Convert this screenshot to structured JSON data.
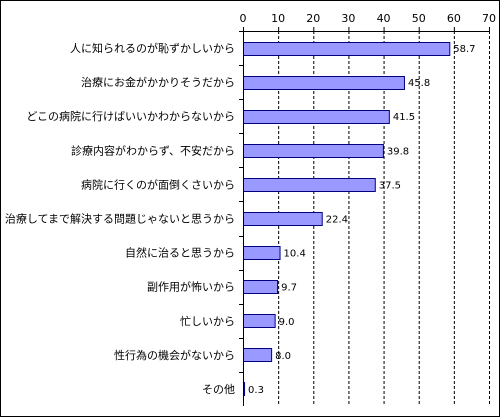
{
  "chart_data": {
    "type": "bar",
    "orientation": "horizontal",
    "categories": [
      "人に知られるのが恥ずかしいから",
      "治療にお金がかかりそうだから",
      "どこの病院に行けばいいかわからないから",
      "診療内容がわからず、不安だから",
      "病院に行くのが面倒くさいから",
      "治療してまで解決する問題じゃないと思うから",
      "自然に治ると思うから",
      "副作用が怖いから",
      "忙しいから",
      "性行為の機会がないから",
      "その他"
    ],
    "values": [
      58.7,
      45.8,
      41.5,
      39.8,
      37.5,
      22.4,
      10.4,
      9.7,
      9.0,
      8.0,
      0.3
    ],
    "value_labels": [
      "58.7",
      "45.8",
      "41.5",
      "39.8",
      "37.5",
      "22.4",
      "10.4",
      "9.7",
      "9.0",
      "8.0",
      "0.3"
    ],
    "x_ticks": [
      "0",
      "10",
      "20",
      "30",
      "40",
      "50",
      "60",
      "70"
    ],
    "xlim": [
      0,
      70
    ],
    "x_axis_position": "top",
    "grid": "vertical-dashed",
    "bar_color": "#9999FF",
    "bar_border_color": "#000080",
    "grid_color": "#000000"
  }
}
